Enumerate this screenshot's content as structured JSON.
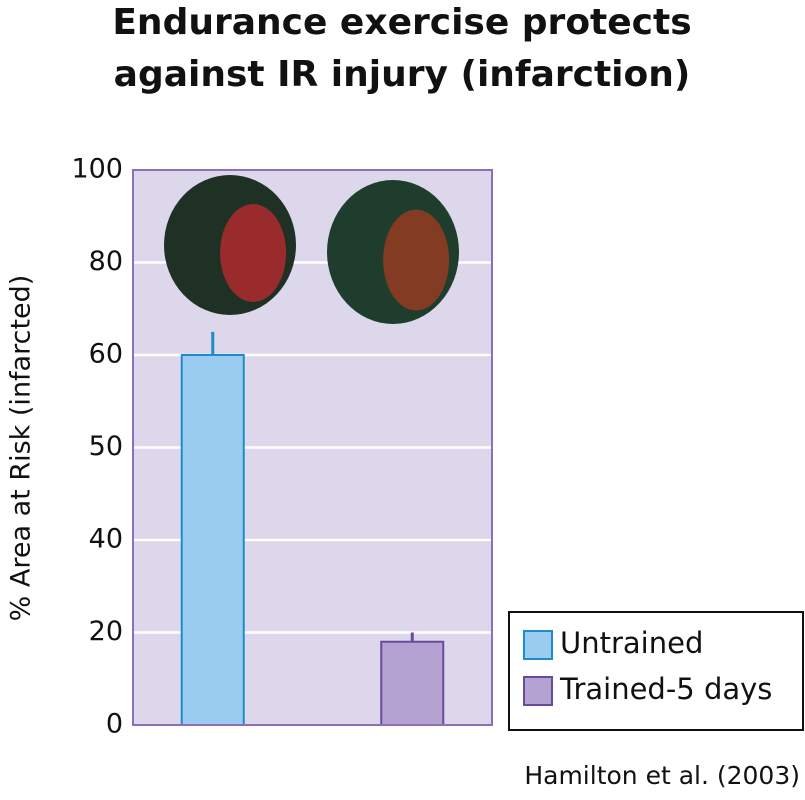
{
  "chart_data": {
    "type": "bar",
    "title": [
      "Endurance exercise protects",
      "against IR injury (infarction)"
    ],
    "y_label": "% Area at Risk (infarcted)",
    "source": "Hamilton et al. (2003)",
    "categories": [
      "Untrained",
      "Trained-5 days"
    ],
    "series": [
      {
        "name": "Untrained",
        "color": "#99ccee",
        "stroke": "#1e8ccc",
        "values": [
          60,
          null
        ],
        "errors": [
          5,
          null
        ]
      },
      {
        "name": "Trained-5 days",
        "color": "#b3a2d2",
        "stroke": "#6a4a9a",
        "values": [
          null,
          18
        ],
        "errors": [
          null,
          2
        ]
      }
    ],
    "ylim": [
      0,
      100
    ],
    "yticks": [
      0,
      20,
      40,
      50,
      60,
      80,
      100
    ],
    "grid": true,
    "plot_background": "#dcd7ea",
    "legend": "lower-right"
  }
}
